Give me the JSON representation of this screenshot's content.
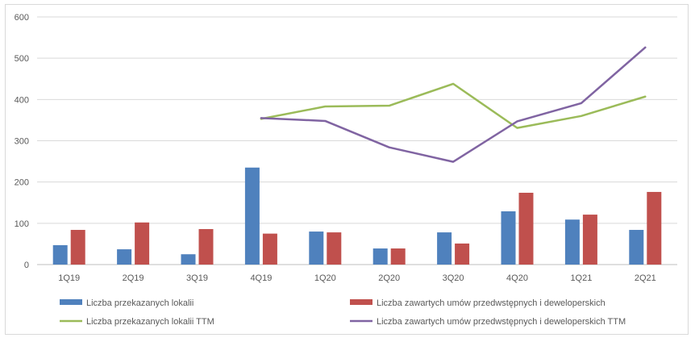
{
  "chart_data": {
    "type": "bar",
    "categories": [
      "1Q19",
      "2Q19",
      "3Q19",
      "4Q19",
      "1Q20",
      "2Q20",
      "3Q20",
      "4Q20",
      "1Q21",
      "2Q21"
    ],
    "ylim": [
      0,
      600
    ],
    "yticks": [
      "0",
      "100",
      "200",
      "300",
      "400",
      "500",
      "600"
    ],
    "grid": true,
    "legend_position": "bottom",
    "series": [
      {
        "name": "Liczba przekazanych lokalii",
        "kind": "bar",
        "color": "#4f81bd",
        "values": [
          47,
          37,
          25,
          235,
          80,
          39,
          78,
          129,
          109,
          84
        ]
      },
      {
        "name": "Liczba zawartych umów przedwstępnych i deweloperskich",
        "kind": "bar",
        "color": "#c0504d",
        "values": [
          84,
          102,
          86,
          75,
          78,
          39,
          51,
          174,
          121,
          176
        ]
      },
      {
        "name": "Liczba przekazanych lokalii TTM",
        "kind": "line",
        "color": "#9bbb59",
        "values": [
          null,
          null,
          null,
          353,
          383,
          385,
          438,
          331,
          360,
          407
        ]
      },
      {
        "name": "Liczba zawartych umów przedwstępnych i deweloperskich TTM",
        "kind": "line",
        "color": "#8064a2",
        "values": [
          null,
          null,
          null,
          355,
          348,
          284,
          249,
          347,
          391,
          526
        ]
      }
    ]
  }
}
